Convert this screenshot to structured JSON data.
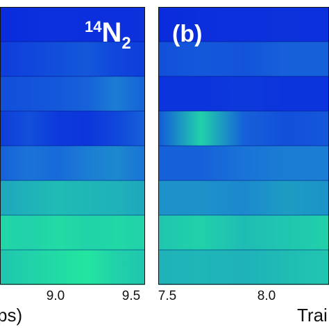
{
  "colors": {
    "low": "#0a2bdc",
    "mid": "#1a73d8",
    "high": "#23f09a"
  },
  "chart_data": [
    {
      "type": "heatmap",
      "panel_label": "",
      "species": {
        "mass": "14",
        "element": "N",
        "sub": "2"
      },
      "x_ticks": [
        "9.0",
        "9.5"
      ],
      "xlim": [
        8.4,
        9.5
      ],
      "xlabel": "ps)",
      "rows": [
        [
          0.0,
          0.02,
          0.03,
          0.02,
          0.03,
          0.04
        ],
        [
          0.1,
          0.15,
          0.2,
          0.25,
          0.15,
          0.1
        ],
        [
          0.2,
          0.22,
          0.25,
          0.3,
          0.45,
          0.3
        ],
        [
          0.1,
          0.2,
          0.08,
          0.06,
          0.15,
          0.3
        ],
        [
          0.3,
          0.4,
          0.35,
          0.45,
          0.5,
          0.4
        ],
        [
          0.65,
          0.7,
          0.75,
          0.72,
          0.7,
          0.65
        ],
        [
          0.88,
          0.85,
          0.9,
          0.86,
          0.88,
          0.85
        ],
        [
          0.8,
          0.85,
          0.9,
          0.95,
          0.85,
          0.8
        ]
      ]
    },
    {
      "type": "heatmap",
      "panel_label": "(b)",
      "x_ticks": [
        "7.5",
        "8.0"
      ],
      "xlim": [
        7.5,
        8.3
      ],
      "xlabel": "Trai",
      "rows": [
        [
          0.0,
          0.02,
          0.03,
          0.04,
          0.03
        ],
        [
          0.2,
          0.25,
          0.22,
          0.3,
          0.3
        ],
        [
          0.05,
          0.05,
          0.08,
          0.05,
          0.05
        ],
        [
          0.25,
          0.85,
          0.3,
          0.2,
          0.25
        ],
        [
          0.3,
          0.3,
          0.4,
          0.45,
          0.45
        ],
        [
          0.55,
          0.55,
          0.5,
          0.6,
          0.55
        ],
        [
          0.8,
          0.85,
          0.75,
          0.8,
          0.85
        ],
        [
          0.7,
          0.72,
          0.7,
          0.75,
          0.8
        ]
      ]
    }
  ]
}
